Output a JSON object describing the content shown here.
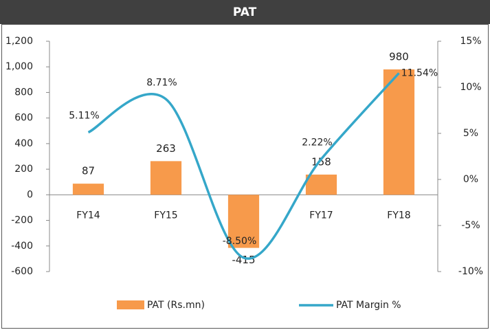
{
  "chart_data": {
    "type": "bar_line",
    "title": "PAT",
    "categories": [
      "FY14",
      "FY15",
      "FY16",
      "FY17",
      "FY18"
    ],
    "series": [
      {
        "name": "PAT (Rs.mn)",
        "color": "#f79a4b",
        "type": "bar",
        "values": [
          87,
          263,
          -415,
          158,
          980
        ]
      },
      {
        "name": "PAT Margin %",
        "color": "#35a7c9",
        "type": "line",
        "axis": "y2",
        "values": [
          5.11,
          8.71,
          -8.5,
          2.22,
          11.54
        ],
        "value_labels": [
          "5.11%",
          "8.71%",
          "-8.50%",
          "2.22%",
          "11.54%"
        ]
      }
    ],
    "ylim": [
      -600,
      1200
    ],
    "yticks": [
      -600,
      -400,
      -200,
      0,
      200,
      400,
      600,
      800,
      {
        "value": 1000,
        "label": "1,000"
      },
      {
        "value": 1200,
        "label": "1,200"
      }
    ],
    "y2lim": [
      -10,
      15
    ],
    "y2ticks": [
      {
        "value": -10,
        "label": "-10%"
      },
      {
        "value": -5,
        "label": "-5%"
      },
      {
        "value": 0,
        "label": "0%"
      },
      {
        "value": 5,
        "label": "5%"
      },
      {
        "value": 10,
        "label": "10%"
      },
      {
        "value": 15,
        "label": "15%"
      }
    ]
  }
}
